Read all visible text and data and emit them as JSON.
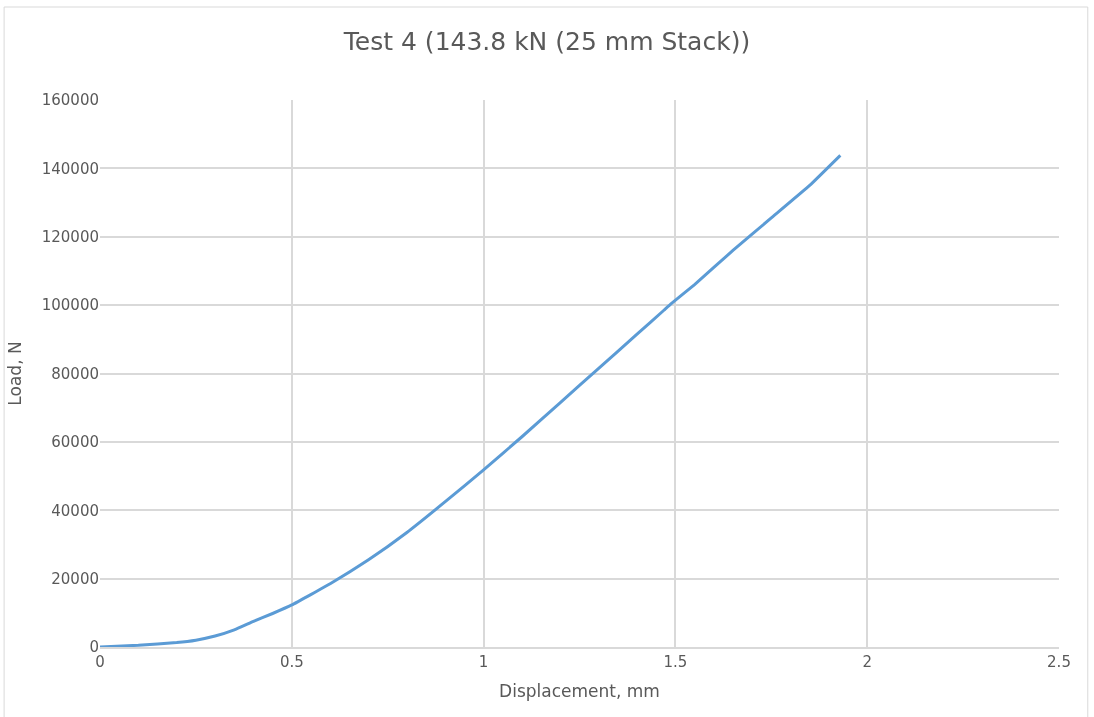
{
  "chart_data": {
    "type": "line",
    "title": "Test 4 (143.8 kN (25 mm Stack))",
    "xlabel": "Displacement, mm",
    "ylabel": "Load, N",
    "series": [
      {
        "color": "#5b9bd5",
        "x": [
          0,
          0.1,
          0.2,
          0.25,
          0.3,
          0.35,
          0.4,
          0.45,
          0.5,
          0.6,
          0.7,
          0.8,
          0.9,
          1.0,
          1.1,
          1.2,
          1.3,
          1.4,
          1.47,
          1.49,
          1.55,
          1.65,
          1.75,
          1.85,
          1.93
        ],
        "values": [
          0,
          500,
          1300,
          2000,
          3200,
          5000,
          7500,
          9800,
          12300,
          18500,
          25500,
          33500,
          42500,
          51800,
          61500,
          71500,
          81500,
          91500,
          98500,
          100500,
          106000,
          116000,
          125500,
          135000,
          143800
        ]
      }
    ],
    "xlim": [
      0,
      2.5
    ],
    "xticks": [
      0,
      0.5,
      1,
      1.5,
      2,
      2.5
    ],
    "ylim": [
      0,
      160000
    ],
    "yticks": [
      0,
      20000,
      40000,
      60000,
      80000,
      100000,
      120000,
      140000,
      160000
    ],
    "grid": true,
    "marker": "none",
    "line_style": "solid"
  }
}
